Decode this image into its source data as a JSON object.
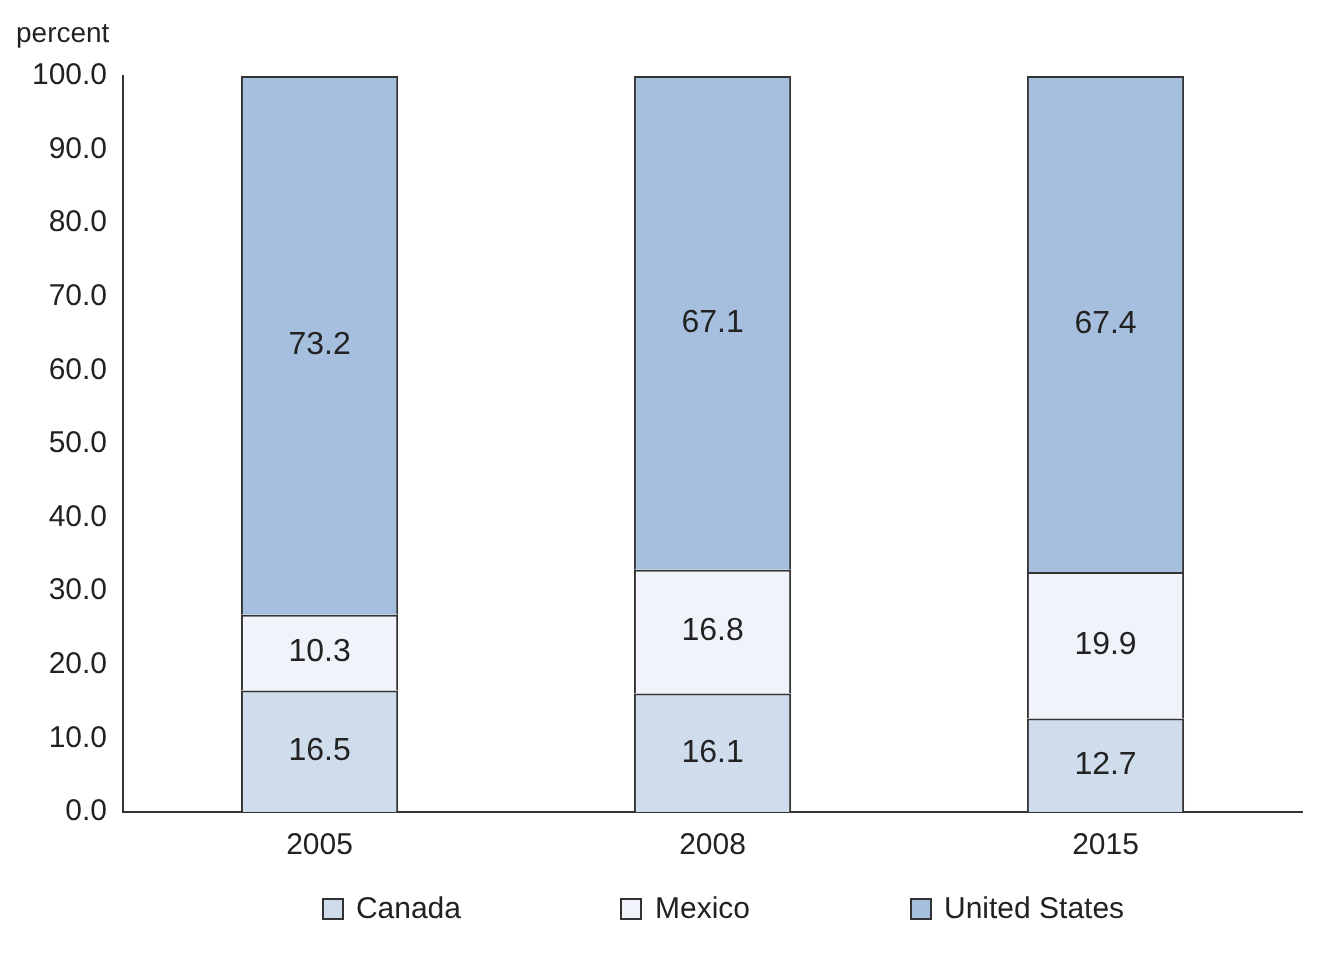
{
  "chart_data": {
    "type": "bar",
    "ylabel": "percent",
    "categories": [
      "2005",
      "2008",
      "2015"
    ],
    "stacked": true,
    "series": [
      {
        "name": "Canada",
        "color": "#cfdcec",
        "values": [
          16.5,
          16.1,
          12.7
        ]
      },
      {
        "name": "Mexico",
        "color": "#f0f4fa",
        "values": [
          10.3,
          16.8,
          19.9
        ]
      },
      {
        "name": "United States",
        "color": "#a7bfde",
        "values": [
          73.2,
          67.1,
          67.4
        ]
      }
    ],
    "ylim": [
      0,
      100
    ],
    "yticks": [
      {
        "value": 0,
        "label": "0.0"
      },
      {
        "value": 10,
        "label": "10.0"
      },
      {
        "value": 20,
        "label": "20.0"
      },
      {
        "value": 30,
        "label": "30.0"
      },
      {
        "value": 40,
        "label": "40.0"
      },
      {
        "value": 50,
        "label": "50.0"
      },
      {
        "value": 60,
        "label": "60.0"
      },
      {
        "value": 70,
        "label": "70.0"
      },
      {
        "value": 80,
        "label": "80.0"
      },
      {
        "value": 90,
        "label": "90.0"
      },
      {
        "value": 100,
        "label": "100.0"
      }
    ],
    "grid": false,
    "legend": "bottom",
    "data_labels": true
  }
}
